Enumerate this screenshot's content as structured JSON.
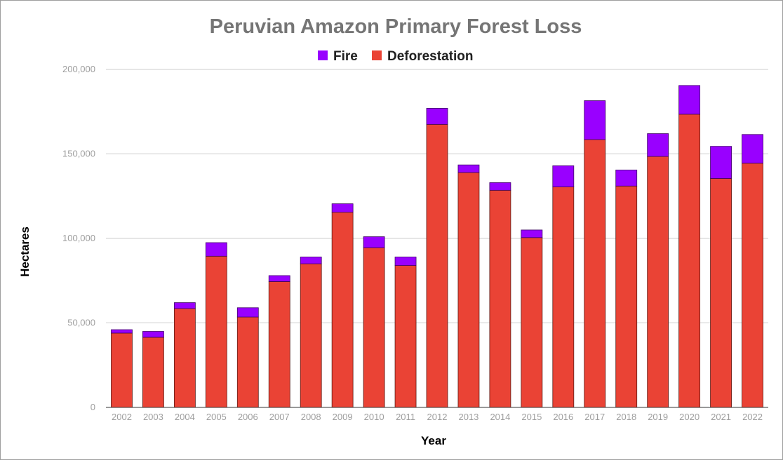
{
  "chart_data": {
    "type": "bar",
    "stacked": true,
    "title": "Peruvian Amazon Primary Forest Loss",
    "xlabel": "Year",
    "ylabel": "Hectares",
    "ylim": [
      0,
      200000
    ],
    "yticks": [
      "0",
      "50,000",
      "100,000",
      "150,000",
      "200,000"
    ],
    "grid": true,
    "legend_position": "top",
    "categories": [
      "2002",
      "2003",
      "2004",
      "2005",
      "2006",
      "2007",
      "2008",
      "2009",
      "2010",
      "2011",
      "2012",
      "2013",
      "2014",
      "2015",
      "2016",
      "2017",
      "2018",
      "2019",
      "2020",
      "2021",
      "2022"
    ],
    "series": [
      {
        "name": "Deforestation",
        "color": "#ea4335",
        "values": [
          44000,
          41500,
          58500,
          89500,
          53500,
          74500,
          85000,
          115500,
          94500,
          84000,
          167500,
          139000,
          128500,
          100500,
          130500,
          158500,
          131000,
          148500,
          173500,
          135500,
          144500
        ]
      },
      {
        "name": "Fire",
        "color": "#9900ff",
        "values": [
          2000,
          3500,
          3500,
          8000,
          5500,
          3500,
          4000,
          5000,
          6500,
          5000,
          9500,
          4500,
          4500,
          4500,
          12500,
          23000,
          9500,
          13500,
          17000,
          19000,
          17000
        ]
      }
    ]
  }
}
